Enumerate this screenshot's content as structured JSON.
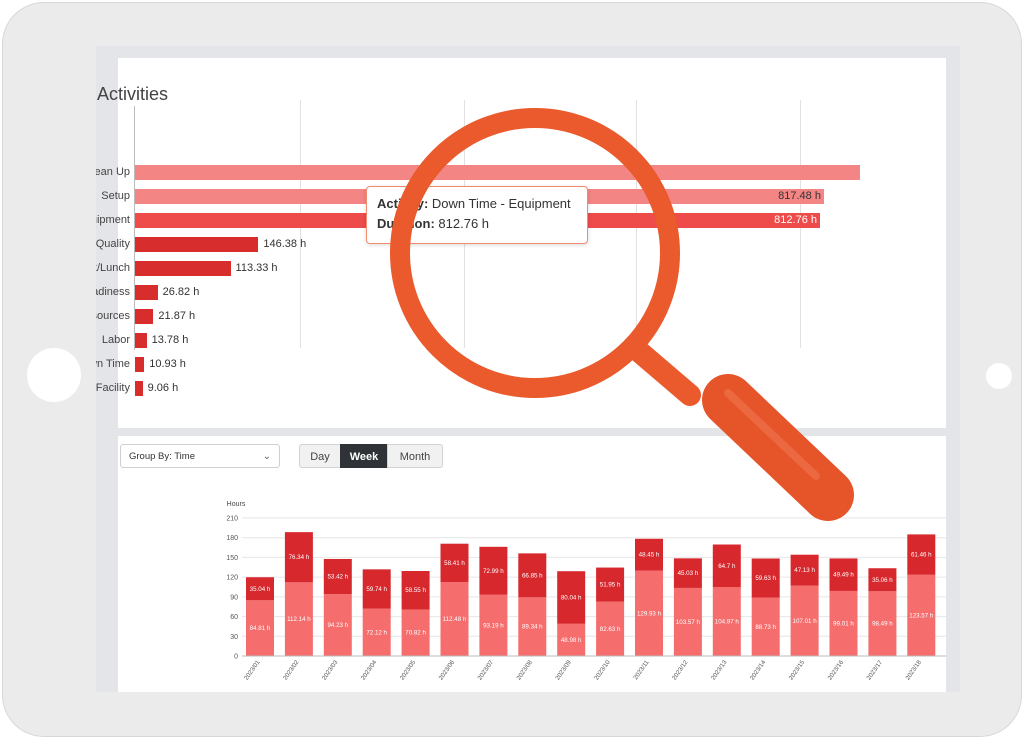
{
  "activities": {
    "title": "Activities",
    "items": [
      {
        "label": "Clean Up",
        "value": 860.0,
        "value_label": ""
      },
      {
        "label": "Setup",
        "value": 817.48,
        "value_label": "817.48 h"
      },
      {
        "label": "Down Time - Equipment",
        "value": 812.76,
        "value_label": "812.76 h"
      },
      {
        "label": "Quality",
        "value": 146.38,
        "value_label": "146.38 h"
      },
      {
        "label": "Break/Lunch",
        "value": 113.33,
        "value_label": "113.33 h"
      },
      {
        "label": "Readiness",
        "value": 26.82,
        "value_label": "26.82 h"
      },
      {
        "label": "Resources",
        "value": 21.87,
        "value_label": "21.87 h"
      },
      {
        "label": "Labor",
        "value": 13.78,
        "value_label": "13.78 h"
      },
      {
        "label": "Unassigned Down Time",
        "value": 10.93,
        "value_label": "10.93 h"
      },
      {
        "label": "Facility",
        "value": 9.06,
        "value_label": "9.06 h"
      }
    ]
  },
  "tooltip": {
    "activity_label": "Activity:",
    "activity_value": "Down Time - Equipment",
    "duration_label": "Duration:",
    "duration_value": "812.76 h"
  },
  "controls": {
    "group_by": "Group By: Time",
    "tabs": [
      {
        "label": "Day",
        "active": false
      },
      {
        "label": "Week",
        "active": true
      },
      {
        "label": "Month",
        "active": false
      }
    ]
  },
  "chart_data": {
    "type": "bar",
    "stacked": true,
    "ylabel": "Hours",
    "ylim": [
      0,
      210
    ],
    "yticks": [
      0,
      30,
      60,
      90,
      120,
      150,
      180,
      210
    ],
    "categories": [
      "2023/01",
      "2023/02",
      "2023/03",
      "2023/04",
      "2023/05",
      "2023/06",
      "2023/07",
      "2023/08",
      "2023/09",
      "2023/10",
      "2023/11",
      "2023/12",
      "2023/13",
      "2023/14",
      "2023/15",
      "2023/16",
      "2023/17",
      "2023/18"
    ],
    "series": [
      {
        "values": [
          84.81,
          112.14,
          94.23,
          72.12,
          70.82,
          112.48,
          93.19,
          89.34,
          48.98,
          82.63,
          129.93,
          103.57,
          104.97,
          88.73,
          107.01,
          99.01,
          98.49,
          123.57
        ],
        "labels": [
          "84.81 h",
          "112.14 h",
          "94.23 h",
          "72.12 h",
          "70.82 h",
          "112.48 h",
          "93.19 h",
          "89.34 h",
          "48.98 h",
          "82.63 h",
          "129.93 h",
          "103.57 h",
          "104.97 h",
          "88.73 h",
          "107.01 h",
          "99.01 h",
          "98.49 h",
          "123.57 h"
        ]
      },
      {
        "values": [
          35.04,
          76.34,
          53.42,
          59.74,
          58.55,
          58.41,
          72.99,
          66.85,
          80.04,
          51.95,
          48.45,
          45.03,
          64.7,
          59.63,
          47.13,
          49.49,
          35.06,
          61.46
        ],
        "labels": [
          "35.04 h",
          "76.34 h",
          "53.42 h",
          "59.74 h",
          "58.55 h",
          "58.41 h",
          "72.99 h",
          "66.85 h",
          "80.04 h",
          "51.95 h",
          "48.45 h",
          "45.03 h",
          "64.7 h",
          "59.63 h",
          "47.13 h",
          "49.49 h",
          "35.06 h",
          "61.46 h"
        ]
      }
    ]
  },
  "colors": {
    "bar_light": "#f48585",
    "bar_mid": "#ee4b4b",
    "bar_dark": "#d72d2d",
    "stack_bottom": "#f56d6d",
    "stack_top": "#d7282d",
    "magnifier": "#ea5a2c"
  },
  "icons": {
    "dropdown": "chevron-down-icon",
    "magnifier": "magnifying-glass-icon"
  }
}
